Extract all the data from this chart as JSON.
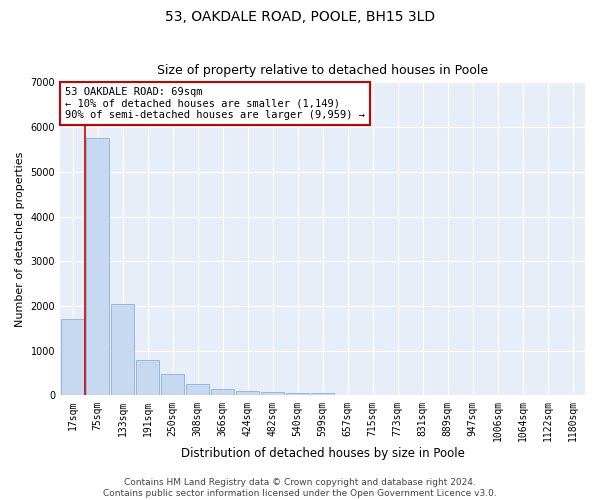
{
  "title": "53, OAKDALE ROAD, POOLE, BH15 3LD",
  "subtitle": "Size of property relative to detached houses in Poole",
  "xlabel": "Distribution of detached houses by size in Poole",
  "ylabel": "Number of detached properties",
  "categories": [
    "17sqm",
    "75sqm",
    "133sqm",
    "191sqm",
    "250sqm",
    "308sqm",
    "366sqm",
    "424sqm",
    "482sqm",
    "540sqm",
    "599sqm",
    "657sqm",
    "715sqm",
    "773sqm",
    "831sqm",
    "889sqm",
    "947sqm",
    "1006sqm",
    "1064sqm",
    "1122sqm",
    "1180sqm"
  ],
  "values": [
    1700,
    5750,
    2050,
    800,
    480,
    245,
    150,
    95,
    75,
    58,
    45,
    18,
    10,
    4,
    2,
    2,
    1,
    1,
    0,
    0,
    0
  ],
  "bar_color": "#c6d9f0",
  "bar_edge_color": "#7aa8d2",
  "vline_x": 0.5,
  "vline_color": "#cc0000",
  "annotation_text": "53 OAKDALE ROAD: 69sqm\n← 10% of detached houses are smaller (1,149)\n90% of semi-detached houses are larger (9,959) →",
  "annotation_box_color": "#ffffff",
  "annotation_box_edge": "#cc0000",
  "footer_text": "Contains HM Land Registry data © Crown copyright and database right 2024.\nContains public sector information licensed under the Open Government Licence v3.0.",
  "ylim": [
    0,
    7000
  ],
  "yticks": [
    0,
    1000,
    2000,
    3000,
    4000,
    5000,
    6000,
    7000
  ],
  "plot_bg_color": "#e8eef8",
  "grid_color": "#ffffff",
  "title_fontsize": 10,
  "subtitle_fontsize": 9,
  "xlabel_fontsize": 8.5,
  "ylabel_fontsize": 8,
  "tick_fontsize": 7,
  "footer_fontsize": 6.5,
  "annot_fontsize": 7.5
}
